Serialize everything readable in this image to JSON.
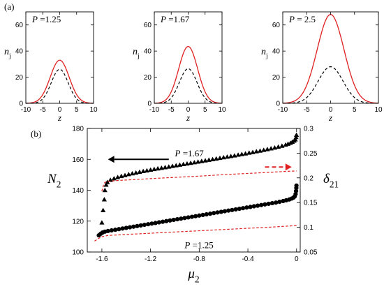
{
  "figure": {
    "label_a": "(a)",
    "label_b": "(b)"
  },
  "chart_data": [
    {
      "type": "line",
      "panel": "(a) left",
      "annotation": {
        "var": "P",
        "text": " =1.25"
      },
      "xlabel": "z",
      "ylabel": {
        "base": "n",
        "sub": "j"
      },
      "xlim": [
        -10,
        10
      ],
      "ylim": [
        0,
        70
      ],
      "xticks": [
        -10,
        -5,
        0,
        5,
        10
      ],
      "yticks": [
        0,
        20,
        40,
        60
      ],
      "series": [
        {
          "style": "solid",
          "color": "#e02020",
          "peak": 33,
          "width": 2.8
        },
        {
          "style": "dashed",
          "color": "#000000",
          "peak": 26,
          "width": 2.5
        }
      ]
    },
    {
      "type": "line",
      "panel": "(a) middle",
      "annotation": {
        "var": "P",
        "text": " =1.67"
      },
      "xlabel": "z",
      "ylabel": {
        "base": "n",
        "sub": "j"
      },
      "xlim": [
        -10,
        10
      ],
      "ylim": [
        0,
        70
      ],
      "xticks": [
        -10,
        -5,
        0,
        5,
        10
      ],
      "yticks": [
        0,
        20,
        40,
        60
      ],
      "series": [
        {
          "style": "solid",
          "color": "#e02020",
          "peak": 43.5,
          "width": 2.8
        },
        {
          "style": "dashed",
          "color": "#000000",
          "peak": 26.5,
          "width": 2.6
        }
      ]
    },
    {
      "type": "line",
      "panel": "(a) right",
      "annotation": {
        "var": "P",
        "text": " = 2.5"
      },
      "xlabel": "z",
      "ylabel": {
        "base": "n",
        "sub": "j"
      },
      "xlim": [
        -10,
        10
      ],
      "ylim": [
        0,
        70
      ],
      "xticks": [
        -10,
        -5,
        0,
        5,
        10
      ],
      "yticks": [
        0,
        20,
        40,
        60
      ],
      "series": [
        {
          "style": "solid",
          "color": "#e02020",
          "peak": 68,
          "width": 2.8
        },
        {
          "style": "dashed",
          "color": "#000000",
          "peak": 28,
          "width": 2.6
        }
      ]
    },
    {
      "type": "scatter",
      "panel": "(b)",
      "xlabel": {
        "base": "μ",
        "sub": "2"
      },
      "ylabel_left": {
        "base": "N",
        "sub": "2"
      },
      "ylabel_right": {
        "base": "δ",
        "sub": "21"
      },
      "xlim": [
        -1.72,
        0.03
      ],
      "ylim_left": [
        100,
        180
      ],
      "ylim_right": [
        0.05,
        0.3
      ],
      "xticks": [
        {
          "value": -1.6,
          "label": "-1.6"
        },
        {
          "value": -1.2,
          "label": "-1.2"
        },
        {
          "value": -0.8,
          "label": "-0.8"
        },
        {
          "value": -0.4,
          "label": "-0.4"
        },
        {
          "value": 0,
          "label": "0"
        }
      ],
      "yticks_left": [
        100,
        120,
        140,
        160,
        180
      ],
      "yticks_right": [
        {
          "value": 0.05,
          "label": "0.05"
        },
        {
          "value": 0.1,
          "label": "0.1"
        },
        {
          "value": 0.15,
          "label": "0.15"
        },
        {
          "value": 0.2,
          "label": "0.2"
        },
        {
          "value": 0.25,
          "label": "0.25"
        },
        {
          "value": 0.3,
          "label": "0.3"
        }
      ],
      "annotations": [
        {
          "var": "P",
          "text": " =1.67",
          "x": -1.0,
          "y": 162
        },
        {
          "var": "P",
          "text": " =1.25",
          "x": -0.92,
          "y": 102.5
        }
      ],
      "arrows": [
        {
          "axis": "left",
          "from": [
            -1.05,
            160
          ],
          "to": [
            -1.55,
            160
          ],
          "style": "solid",
          "color": "#000000"
        },
        {
          "axis": "right",
          "from": [
            -0.26,
            0.222
          ],
          "to": [
            -0.04,
            0.222
          ],
          "style": "dashed",
          "color": "#e02020"
        }
      ],
      "series": [
        {
          "marker": "triangle",
          "axis": "left",
          "color": "#000000",
          "points": [
            [
              -1.6,
              119
            ],
            [
              -1.59,
              127
            ],
            [
              -1.58,
              134
            ],
            [
              -1.575,
              140
            ],
            [
              -1.565,
              143.5
            ],
            [
              -1.555,
              145.2
            ],
            [
              -1.53,
              146.6
            ],
            [
              -1.5,
              147.6
            ],
            [
              -1.47,
              148.4
            ],
            [
              -1.44,
              149.1
            ],
            [
              -1.41,
              149.7
            ],
            [
              -1.38,
              150.3
            ],
            [
              -1.35,
              150.8
            ],
            [
              -1.32,
              151.3
            ],
            [
              -1.29,
              151.8
            ],
            [
              -1.26,
              152.3
            ],
            [
              -1.23,
              152.7
            ],
            [
              -1.2,
              153.2
            ],
            [
              -1.17,
              153.6
            ],
            [
              -1.14,
              154.0
            ],
            [
              -1.11,
              154.4
            ],
            [
              -1.08,
              154.8
            ],
            [
              -1.05,
              155.2
            ],
            [
              -1.02,
              155.6
            ],
            [
              -0.99,
              156.0
            ],
            [
              -0.96,
              156.4
            ],
            [
              -0.93,
              156.8
            ],
            [
              -0.9,
              157.2
            ],
            [
              -0.87,
              157.6
            ],
            [
              -0.84,
              158.0
            ],
            [
              -0.81,
              158.4
            ],
            [
              -0.78,
              158.8
            ],
            [
              -0.75,
              159.2
            ],
            [
              -0.72,
              159.6
            ],
            [
              -0.69,
              160.0
            ],
            [
              -0.66,
              160.4
            ],
            [
              -0.63,
              160.8
            ],
            [
              -0.6,
              161.2
            ],
            [
              -0.57,
              161.6
            ],
            [
              -0.54,
              162.0
            ],
            [
              -0.51,
              162.4
            ],
            [
              -0.48,
              162.9
            ],
            [
              -0.45,
              163.3
            ],
            [
              -0.42,
              163.7
            ],
            [
              -0.39,
              164.2
            ],
            [
              -0.36,
              164.6
            ],
            [
              -0.33,
              165.1
            ],
            [
              -0.3,
              165.5
            ],
            [
              -0.27,
              166.0
            ],
            [
              -0.24,
              166.5
            ],
            [
              -0.21,
              167.0
            ],
            [
              -0.18,
              167.5
            ],
            [
              -0.15,
              168.1
            ],
            [
              -0.12,
              168.7
            ],
            [
              -0.09,
              169.4
            ],
            [
              -0.07,
              170.0
            ],
            [
              -0.05,
              170.6
            ],
            [
              -0.035,
              171.3
            ],
            [
              -0.02,
              172.0
            ],
            [
              -0.01,
              172.8
            ],
            [
              -0.004,
              174.3
            ],
            [
              -0.001,
              175.8
            ]
          ]
        },
        {
          "marker": "circle",
          "axis": "left",
          "color": "#000000",
          "points": [
            [
              -1.625,
              110.8
            ],
            [
              -1.61,
              111.8
            ],
            [
              -1.595,
              112.6
            ],
            [
              -1.575,
              113.2
            ],
            [
              -1.55,
              113.6
            ],
            [
              -1.52,
              114.0
            ],
            [
              -1.49,
              114.4
            ],
            [
              -1.46,
              114.8
            ],
            [
              -1.43,
              115.2
            ],
            [
              -1.4,
              115.6
            ],
            [
              -1.37,
              116.0
            ],
            [
              -1.34,
              116.4
            ],
            [
              -1.31,
              116.8
            ],
            [
              -1.28,
              117.2
            ],
            [
              -1.25,
              117.6
            ],
            [
              -1.22,
              118.0
            ],
            [
              -1.19,
              118.4
            ],
            [
              -1.16,
              118.8
            ],
            [
              -1.13,
              119.2
            ],
            [
              -1.1,
              119.6
            ],
            [
              -1.07,
              120.0
            ],
            [
              -1.04,
              120.4
            ],
            [
              -1.01,
              120.8
            ],
            [
              -0.98,
              121.2
            ],
            [
              -0.95,
              121.6
            ],
            [
              -0.92,
              122.0
            ],
            [
              -0.89,
              122.4
            ],
            [
              -0.86,
              122.8
            ],
            [
              -0.83,
              123.2
            ],
            [
              -0.8,
              123.6
            ],
            [
              -0.77,
              124.0
            ],
            [
              -0.74,
              124.4
            ],
            [
              -0.71,
              124.8
            ],
            [
              -0.68,
              125.2
            ],
            [
              -0.65,
              125.6
            ],
            [
              -0.62,
              126.0
            ],
            [
              -0.59,
              126.4
            ],
            [
              -0.56,
              126.8
            ],
            [
              -0.53,
              127.2
            ],
            [
              -0.5,
              127.6
            ],
            [
              -0.47,
              128.0
            ],
            [
              -0.44,
              128.4
            ],
            [
              -0.41,
              128.8
            ],
            [
              -0.38,
              129.2
            ],
            [
              -0.35,
              129.6
            ],
            [
              -0.32,
              130.0
            ],
            [
              -0.29,
              130.4
            ],
            [
              -0.26,
              130.8
            ],
            [
              -0.23,
              131.2
            ],
            [
              -0.2,
              131.6
            ],
            [
              -0.17,
              132.0
            ],
            [
              -0.14,
              132.5
            ],
            [
              -0.11,
              133.0
            ],
            [
              -0.085,
              133.5
            ],
            [
              -0.06,
              134.0
            ],
            [
              -0.04,
              134.6
            ],
            [
              -0.025,
              135.2
            ],
            [
              -0.015,
              136.0
            ],
            [
              -0.008,
              137.5
            ],
            [
              -0.004,
              139.5
            ],
            [
              -0.002,
              141.5
            ],
            [
              -0.001,
              143.0
            ]
          ]
        },
        {
          "style": "dashed",
          "axis": "right",
          "color": "#e02020",
          "points": [
            [
              -1.6,
              0.173
            ],
            [
              -1.585,
              0.187
            ],
            [
              -1.575,
              0.191
            ],
            [
              -1.55,
              0.193
            ],
            [
              -1.45,
              0.195
            ],
            [
              -1.3,
              0.197
            ],
            [
              -1.2,
              0.1985
            ],
            [
              -1.0,
              0.201
            ],
            [
              -0.8,
              0.2035
            ],
            [
              -0.6,
              0.2065
            ],
            [
              -0.4,
              0.209
            ],
            [
              -0.2,
              0.2115
            ],
            [
              -0.1,
              0.213
            ],
            [
              0,
              0.214
            ]
          ]
        },
        {
          "style": "dashed",
          "axis": "right",
          "color": "#e02020",
          "points": [
            [
              -1.66,
              0.072
            ],
            [
              -1.63,
              0.077
            ],
            [
              -1.6,
              0.081
            ],
            [
              -1.55,
              0.0835
            ],
            [
              -1.4,
              0.0855
            ],
            [
              -1.2,
              0.088
            ],
            [
              -1.0,
              0.0905
            ],
            [
              -0.8,
              0.093
            ],
            [
              -0.6,
              0.0955
            ],
            [
              -0.4,
              0.098
            ],
            [
              -0.2,
              0.1005
            ],
            [
              -0.1,
              0.102
            ],
            [
              0,
              0.1035
            ]
          ]
        }
      ]
    }
  ]
}
